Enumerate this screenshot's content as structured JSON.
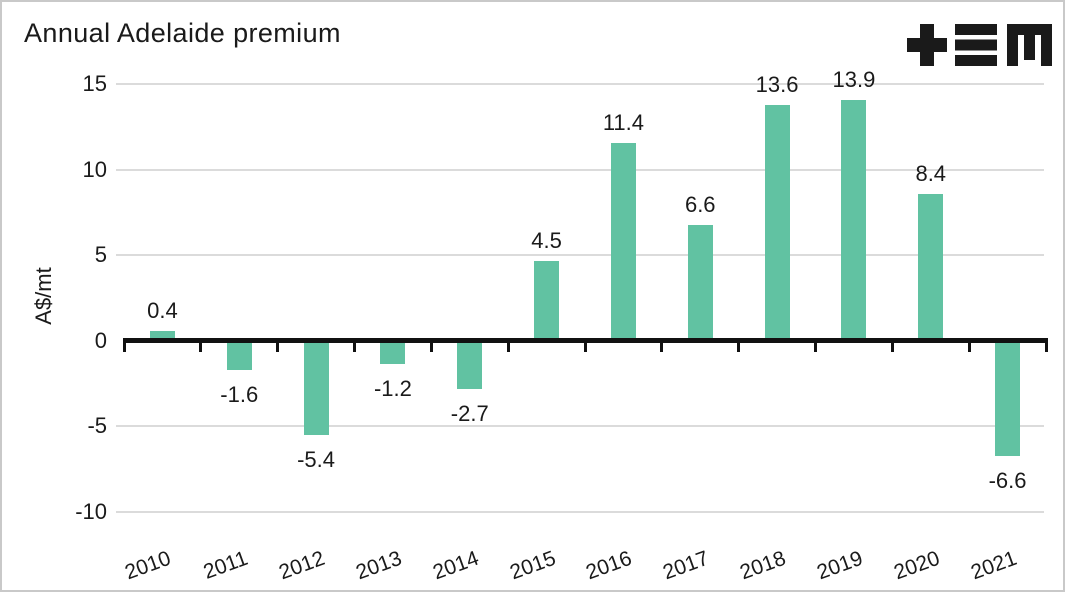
{
  "header": {
    "title": "Annual Adelaide premium"
  },
  "logo": {
    "name": "tem-logo",
    "glyphs": [
      "plus",
      "triple-bar",
      "m"
    ],
    "color": "#1a1a1a"
  },
  "chart_data": {
    "type": "bar",
    "title": "Annual Adelaide premium",
    "categories": [
      "2010",
      "2011",
      "2012",
      "2013",
      "2014",
      "2015",
      "2016",
      "2017",
      "2018",
      "2019",
      "2020",
      "2021"
    ],
    "values": [
      0.4,
      -1.6,
      -5.4,
      -1.2,
      -2.7,
      4.5,
      11.4,
      6.6,
      13.6,
      13.9,
      8.4,
      -6.6
    ],
    "data_labels": [
      "0.4",
      "-1.6",
      "-5.4",
      "-1.2",
      "-2.7",
      "4.5",
      "11.4",
      "6.6",
      "13.6",
      "13.9",
      "8.4",
      "-6.6"
    ],
    "xlabel": "",
    "ylabel": "A$/mt",
    "yticks": [
      15,
      10,
      5,
      0,
      -5,
      -10
    ],
    "ylim": [
      -10,
      15
    ],
    "grid": true,
    "legend": false,
    "x_tick_rotation_deg": -20,
    "colors": {
      "bar": "#61C2A2",
      "gridline": "#DBDBDB",
      "axis": "#111111",
      "text": "#1A1A1A"
    }
  }
}
